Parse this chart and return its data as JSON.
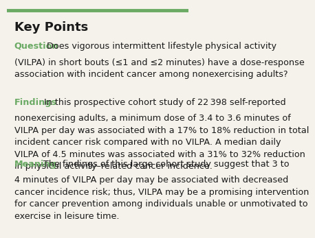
{
  "background_color": "#f5f2eb",
  "border_top_color": "#6aaa64",
  "title": "Key Points",
  "title_color": "#1a1a1a",
  "title_fontsize": 13,
  "label_color": "#6aaa64",
  "body_color": "#1a1a1a",
  "body_fontsize": 9.2,
  "sections": [
    {
      "label": "Question",
      "text": "  Does vigorous intermittent lifestyle physical activity\n(VILPA) in short bouts (≤1 and ≤2 minutes) have a dose-response\nassociation with incident cancer among nonexercising adults?"
    },
    {
      "label": "Findings",
      "text": "  In this prospective cohort study of 22 398 self-reported\nnonexercising adults, a minimum dose of 3.4 to 3.6 minutes of\nVILPA per day was associated with a 17% to 18% reduction in total\nincident cancer risk compared with no VILPA. A median daily\nVILPA of 4.5 minutes was associated with a 31% to 32% reduction\nin physical activity–related cancer incidence."
    },
    {
      "label": "Meaning",
      "text": "  The findings of this large cohort study suggest that 3 to\n4 minutes of VILPA per day may be associated with decreased\ncancer incidence risk; thus, VILPA may be a promising intervention\nfor cancer prevention among individuals unable or unmotivated to\nexercise in leisure time."
    }
  ]
}
